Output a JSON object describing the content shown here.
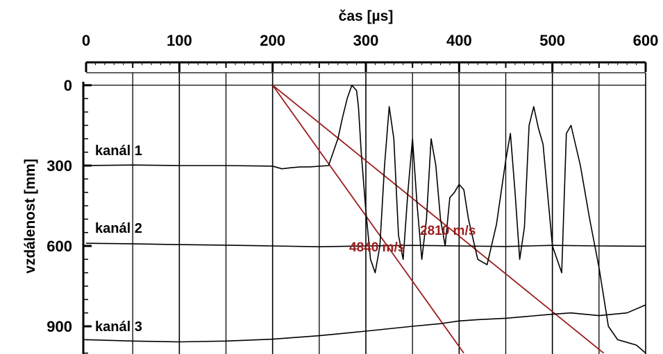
{
  "chart_data": {
    "type": "line",
    "xlabel": "čas [µs]",
    "ylabel": "vzdálenost [mm]",
    "xlim": [
      0,
      600
    ],
    "ylim": [
      0,
      1000
    ],
    "y_inverted": true,
    "x_axis_position": "top",
    "x_ticks": [
      "0",
      "100",
      "200",
      "300",
      "400",
      "500",
      "600"
    ],
    "y_ticks": [
      "0",
      "300",
      "600",
      "900"
    ],
    "grid": "vertical lines every 50 µs",
    "colors": {
      "traces": "#000000",
      "velocity_lines": "#9b1c1c",
      "grid": "#000000"
    },
    "series": [
      {
        "name": "kanál 1",
        "baseline": 300,
        "x": [
          0,
          50,
          100,
          150,
          200,
          210,
          220,
          230,
          240,
          260,
          270,
          275,
          280,
          285,
          290,
          292,
          295,
          300,
          305,
          310,
          315,
          320,
          325,
          330,
          335,
          340,
          345,
          350,
          355,
          360,
          365,
          370,
          375,
          380,
          385,
          390,
          395,
          400,
          405,
          410,
          420,
          430,
          440,
          450,
          455,
          460,
          465,
          470,
          475,
          480,
          485,
          490,
          500,
          510,
          515,
          520,
          530,
          540,
          550,
          560,
          570,
          580,
          590,
          600
        ],
        "y": [
          300,
          298,
          300,
          300,
          302,
          312,
          308,
          305,
          305,
          300,
          200,
          120,
          50,
          0,
          20,
          80,
          250,
          470,
          650,
          700,
          600,
          300,
          80,
          200,
          560,
          650,
          400,
          200,
          450,
          650,
          500,
          200,
          300,
          500,
          600,
          420,
          400,
          370,
          390,
          500,
          650,
          670,
          520,
          280,
          180,
          400,
          650,
          530,
          150,
          80,
          160,
          220,
          600,
          700,
          180,
          150,
          300,
          500,
          680,
          900,
          950,
          960,
          970,
          1000
        ]
      },
      {
        "name": "kanál 2",
        "baseline": 600,
        "x": [
          0,
          50,
          100,
          150,
          200,
          250,
          300,
          350,
          400,
          450,
          500,
          550,
          600
        ],
        "y": [
          590,
          592,
          595,
          597,
          600,
          603,
          600,
          598,
          600,
          602,
          598,
          600,
          601
        ]
      },
      {
        "name": "kanál 3",
        "baseline": 950,
        "x": [
          0,
          50,
          100,
          150,
          200,
          250,
          300,
          350,
          380,
          400,
          420,
          450,
          500,
          520,
          550,
          580,
          600
        ],
        "y": [
          950,
          955,
          958,
          955,
          948,
          935,
          918,
          900,
          890,
          880,
          875,
          870,
          855,
          850,
          860,
          850,
          820
        ]
      }
    ],
    "velocity_lines": [
      {
        "label": "2810 m/s",
        "from": [
          200,
          0
        ],
        "to": [
          555,
          1000
        ]
      },
      {
        "label": "4840 m/s",
        "from": [
          200,
          0
        ],
        "to": [
          405,
          1000
        ]
      }
    ]
  }
}
